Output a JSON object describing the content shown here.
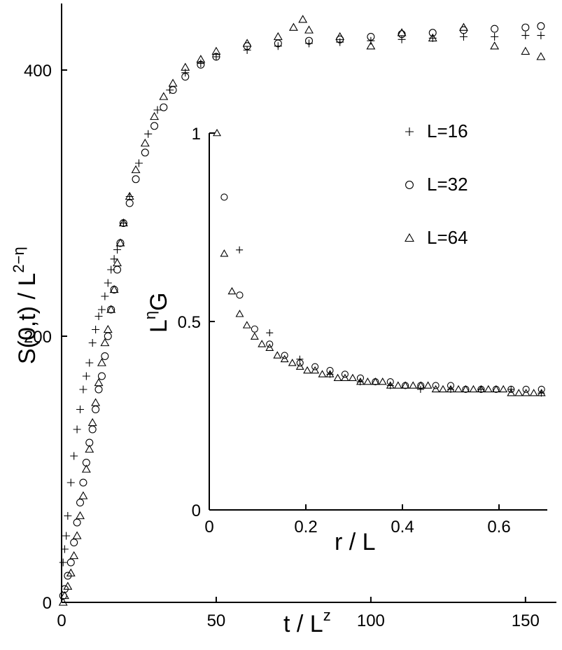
{
  "chart_data": [
    {
      "id": "main",
      "type": "scatter",
      "xlabel": {
        "base": "t / L",
        "sup": "z"
      },
      "ylabel": {
        "base": "S(0,t) / L",
        "sup": "2−η"
      },
      "xlim": [
        0,
        160
      ],
      "ylim": [
        0,
        450
      ],
      "xticks": [
        "0",
        "50",
        "100",
        "150"
      ],
      "yticks": [
        "0",
        "200",
        "400"
      ],
      "grid": false,
      "legend_position": "inside, right of inset top",
      "series": [
        {
          "name": "L=16",
          "marker": "plus",
          "x": [
            0.5,
            1,
            1.5,
            2,
            3,
            4,
            5,
            6,
            7,
            8,
            9,
            10,
            11,
            12,
            13,
            14,
            15,
            16,
            17,
            18,
            20,
            22,
            25,
            28,
            31,
            35,
            40,
            45,
            50,
            60,
            70,
            80,
            90,
            100,
            110,
            120,
            130,
            140,
            150,
            155
          ],
          "y": [
            30,
            40,
            50,
            65,
            90,
            110,
            130,
            145,
            160,
            170,
            180,
            195,
            205,
            215,
            220,
            230,
            240,
            250,
            258,
            265,
            285,
            305,
            330,
            352,
            370,
            385,
            398,
            405,
            410,
            415,
            418,
            420,
            421,
            422,
            423,
            424,
            425,
            425,
            426,
            426
          ]
        },
        {
          "name": "L=32",
          "marker": "circle",
          "x": [
            0.5,
            1,
            2,
            3,
            4,
            5,
            6,
            7,
            8,
            9,
            10,
            11,
            12,
            13,
            14,
            15,
            16,
            17,
            18,
            19,
            20,
            22,
            24,
            27,
            30,
            33,
            36,
            40,
            45,
            50,
            60,
            70,
            80,
            90,
            100,
            110,
            120,
            130,
            140,
            150,
            155
          ],
          "y": [
            5,
            10,
            20,
            30,
            45,
            60,
            75,
            90,
            105,
            120,
            130,
            145,
            160,
            170,
            185,
            200,
            220,
            235,
            250,
            270,
            285,
            300,
            318,
            338,
            358,
            372,
            385,
            395,
            404,
            410,
            418,
            420,
            422,
            423,
            425,
            427,
            428,
            430,
            431,
            432,
            433
          ]
        },
        {
          "name": "L=64",
          "marker": "triangle",
          "x": [
            0.5,
            1,
            2,
            3,
            4,
            5,
            6,
            7,
            8,
            9,
            10,
            11,
            12,
            13,
            14,
            15,
            16,
            17,
            18,
            19,
            20,
            22,
            24,
            27,
            30,
            33,
            36,
            40,
            45,
            50,
            60,
            70,
            75,
            78,
            80,
            90,
            100,
            110,
            120,
            130,
            140,
            150,
            155
          ],
          "y": [
            0,
            5,
            12,
            22,
            35,
            50,
            65,
            80,
            100,
            115,
            135,
            150,
            165,
            180,
            195,
            205,
            220,
            235,
            255,
            270,
            285,
            305,
            325,
            345,
            365,
            380,
            390,
            402,
            408,
            414,
            420,
            425,
            432,
            438,
            430,
            425,
            418,
            428,
            424,
            432,
            418,
            414,
            410
          ]
        }
      ]
    },
    {
      "id": "inset",
      "type": "scatter",
      "xlabel": {
        "base": "r / L",
        "sup": ""
      },
      "ylabel": {
        "base": "L",
        "sup": "η",
        "tail": "G"
      },
      "xlim": [
        0,
        0.7
      ],
      "ylim": [
        0,
        1
      ],
      "xticks": [
        "0",
        "0.2",
        "0.4",
        "0.6"
      ],
      "yticks": [
        "0",
        "0.5",
        "1"
      ],
      "grid": false,
      "series": [
        {
          "name": "L=16",
          "marker": "plus",
          "x": [
            0.0625,
            0.125,
            0.1875,
            0.25,
            0.3125,
            0.375,
            0.4375,
            0.5,
            0.5625,
            0.625,
            0.6875
          ],
          "y": [
            0.69,
            0.47,
            0.4,
            0.36,
            0.34,
            0.33,
            0.32,
            0.32,
            0.32,
            0.32,
            0.31
          ]
        },
        {
          "name": "L=32",
          "marker": "circle",
          "x": [
            0.031,
            0.063,
            0.094,
            0.125,
            0.156,
            0.188,
            0.219,
            0.25,
            0.281,
            0.313,
            0.344,
            0.375,
            0.406,
            0.438,
            0.469,
            0.5,
            0.531,
            0.563,
            0.594,
            0.625,
            0.656,
            0.688
          ],
          "y": [
            0.83,
            0.57,
            0.48,
            0.44,
            0.41,
            0.39,
            0.38,
            0.37,
            0.36,
            0.35,
            0.34,
            0.34,
            0.33,
            0.33,
            0.33,
            0.33,
            0.32,
            0.32,
            0.32,
            0.32,
            0.32,
            0.32
          ]
        },
        {
          "name": "L=64",
          "marker": "triangle",
          "x": [
            0.016,
            0.031,
            0.047,
            0.063,
            0.078,
            0.094,
            0.109,
            0.125,
            0.141,
            0.156,
            0.172,
            0.188,
            0.203,
            0.219,
            0.234,
            0.25,
            0.266,
            0.281,
            0.297,
            0.313,
            0.328,
            0.344,
            0.359,
            0.375,
            0.391,
            0.406,
            0.422,
            0.438,
            0.453,
            0.469,
            0.484,
            0.5,
            0.516,
            0.531,
            0.547,
            0.563,
            0.578,
            0.594,
            0.609,
            0.625,
            0.641,
            0.656,
            0.672,
            0.688
          ],
          "y": [
            1.0,
            0.68,
            0.58,
            0.52,
            0.49,
            0.46,
            0.44,
            0.43,
            0.41,
            0.4,
            0.39,
            0.38,
            0.37,
            0.37,
            0.36,
            0.36,
            0.35,
            0.35,
            0.35,
            0.34,
            0.34,
            0.34,
            0.34,
            0.33,
            0.33,
            0.33,
            0.33,
            0.33,
            0.33,
            0.32,
            0.32,
            0.32,
            0.32,
            0.32,
            0.32,
            0.32,
            0.32,
            0.32,
            0.32,
            0.31,
            0.31,
            0.31,
            0.31,
            0.31
          ]
        }
      ]
    }
  ]
}
